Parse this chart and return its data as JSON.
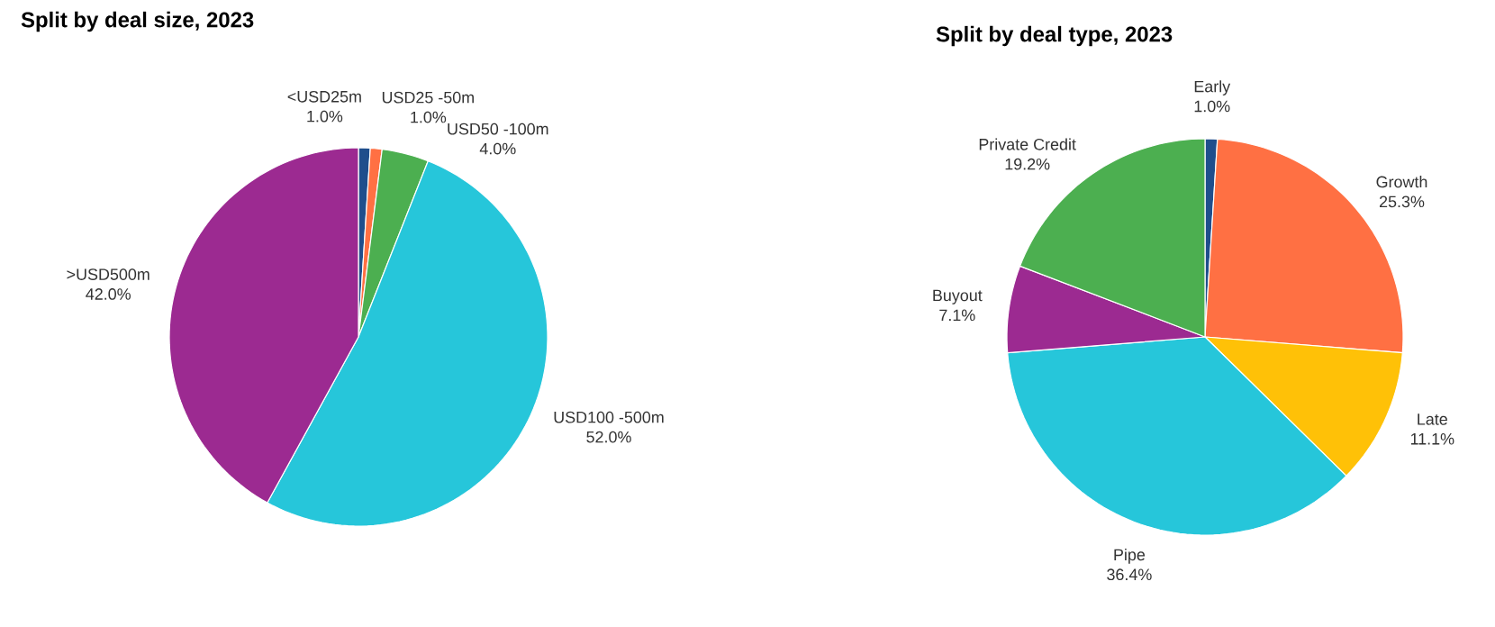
{
  "chart_data": [
    {
      "type": "pie",
      "title": "Split by deal size, 2023",
      "categories": [
        "<USD25m",
        "USD25 -50m",
        "USD50 -100m",
        "USD100  -500m",
        ">USD500m"
      ],
      "values": [
        1.0,
        1.0,
        4.0,
        52.0,
        42.0
      ],
      "value_labels": [
        "1.0%",
        "1.0%",
        "4.0%",
        "52.0%",
        "42.0%"
      ],
      "colors": [
        "#1f4e8c",
        "#ff7043",
        "#4caf50",
        "#26c6da",
        "#9c2a91"
      ]
    },
    {
      "type": "pie",
      "title": "Split by deal type, 2023",
      "categories": [
        "Early",
        "Growth",
        "Late",
        "Pipe",
        "Buyout",
        "Private Credit"
      ],
      "values": [
        1.0,
        25.3,
        11.1,
        36.4,
        7.1,
        19.2
      ],
      "value_labels": [
        "1.0%",
        "25.3%",
        "11.1%",
        "36.4%",
        "7.1%",
        "19.2%"
      ],
      "colors": [
        "#1f4e8c",
        "#ff7043",
        "#ffc107",
        "#26c6da",
        "#9c2a91",
        "#4caf50"
      ]
    }
  ]
}
